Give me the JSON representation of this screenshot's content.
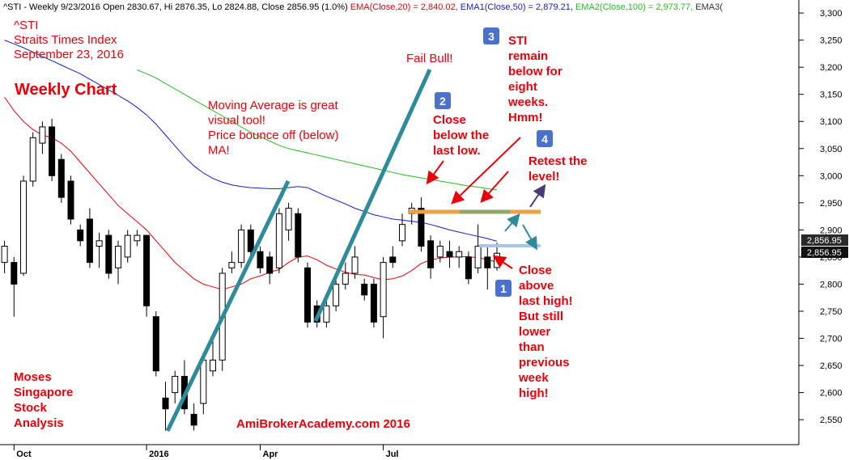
{
  "chart_data": {
    "type": "candlestick",
    "header": [
      {
        "text": "^STI - Weekly 9/23/2016 Open 2830.67, Hi 2876.35, Lo 2824.88, Close 2856.95 (1.0%) ",
        "color": "#000000"
      },
      {
        "text": "EMA(Close,20) = 2,840.02, ",
        "color": "#e8000b"
      },
      {
        "text": "EMA1(Close,50) = 2,879.21, ",
        "color": "#1a1acc"
      },
      {
        "text": "EMA2(Close,100) = 2,973.77, ",
        "color": "#22bb22"
      },
      {
        "text": "EMA3(",
        "color": "#333333"
      }
    ],
    "categories": [
      null,
      "Oct",
      null,
      null,
      null,
      null,
      null,
      null,
      null,
      null,
      null,
      null,
      null,
      null,
      null,
      "2016",
      null,
      null,
      null,
      null,
      null,
      null,
      null,
      null,
      null,
      null,
      null,
      "Apr",
      null,
      null,
      null,
      null,
      null,
      null,
      null,
      null,
      null,
      null,
      null,
      null,
      "Jul",
      null,
      null,
      null,
      null,
      null,
      null,
      null,
      null,
      null,
      null,
      null,
      null
    ],
    "open": [
      2840,
      2840,
      2820,
      2990,
      3060,
      3090,
      3030,
      2990,
      2900,
      2920,
      2870,
      2890,
      2830,
      2850,
      2880,
      2890,
      2740,
      2590,
      2600,
      2630,
      2560,
      2580,
      2640,
      2660,
      2830,
      2840,
      2900,
      2860,
      2850,
      2830,
      2900,
      2930,
      2830,
      2760,
      2730,
      2760,
      2800,
      2820,
      2800,
      2800,
      2740,
      2850,
      2880,
      2930,
      2940,
      2880,
      2850,
      2860,
      2850,
      2850,
      2830,
      2850,
      2830.67
    ],
    "high": [
      2880,
      2850,
      3000,
      3080,
      3100,
      3105,
      3040,
      3000,
      2910,
      2940,
      2895,
      2900,
      2880,
      2900,
      2900,
      2890,
      2750,
      2620,
      2640,
      2660,
      2580,
      2670,
      2700,
      2830,
      2860,
      2910,
      2910,
      2870,
      2860,
      2940,
      2950,
      2940,
      2840,
      2770,
      2770,
      2810,
      2840,
      2870,
      2810,
      2810,
      2850,
      2870,
      2930,
      2950,
      2960,
      2890,
      2880,
      2880,
      2870,
      2860,
      2910,
      2870,
      2876.35
    ],
    "low": [
      2820,
      2740,
      2815,
      2980,
      3040,
      2990,
      2950,
      2910,
      2870,
      2830,
      2830,
      2810,
      2800,
      2840,
      2870,
      2740,
      2630,
      2530,
      2580,
      2560,
      2530,
      2560,
      2630,
      2640,
      2820,
      2830,
      2850,
      2820,
      2800,
      2820,
      2880,
      2840,
      2720,
      2720,
      2720,
      2750,
      2790,
      2810,
      2770,
      2720,
      2700,
      2830,
      2870,
      2910,
      2860,
      2810,
      2840,
      2830,
      2830,
      2800,
      2820,
      2790,
      2824.88
    ],
    "close": [
      2870,
      2800,
      2990,
      3070,
      3090,
      3000,
      2960,
      2920,
      2880,
      2840,
      2880,
      2820,
      2870,
      2890,
      2890,
      2760,
      2640,
      2570,
      2630,
      2570,
      2540,
      2660,
      2660,
      2820,
      2840,
      2900,
      2860,
      2830,
      2820,
      2930,
      2940,
      2850,
      2730,
      2730,
      2760,
      2800,
      2820,
      2850,
      2780,
      2730,
      2840,
      2840,
      2910,
      2940,
      2870,
      2830,
      2870,
      2850,
      2860,
      2810,
      2870,
      2830,
      2856.95
    ],
    "lines": [
      {
        "color": "#e8000b",
        "values": [
          3145,
          3120,
          3100,
          3085,
          3075,
          3070,
          3060,
          3045,
          3025,
          3005,
          2985,
          2965,
          2945,
          2930,
          2915,
          2900,
          2880,
          2860,
          2840,
          2825,
          2810,
          2800,
          2795,
          2790,
          2795,
          2800,
          2810,
          2815,
          2822,
          2827,
          2840,
          2850,
          2852,
          2845,
          2835,
          2828,
          2822,
          2818,
          2817,
          2812,
          2808,
          2810,
          2815,
          2825,
          2838,
          2845,
          2848,
          2850,
          2850,
          2851,
          2848,
          2846,
          2840.02
        ]
      },
      {
        "color": "#1a1acc",
        "values": [
          3250,
          3243,
          3236,
          3228,
          3220,
          3212,
          3204,
          3196,
          3188,
          3178,
          3168,
          3158,
          3148,
          3138,
          3126,
          3112,
          3095,
          3075,
          3055,
          3035,
          3018,
          3005,
          2995,
          2988,
          2983,
          2980,
          2978,
          2977,
          2976,
          2976,
          2978,
          2980,
          2978,
          2970,
          2962,
          2955,
          2948,
          2940,
          2934,
          2928,
          2924,
          2920,
          2918,
          2916,
          2914,
          2910,
          2905,
          2900,
          2896,
          2892,
          2888,
          2884,
          2879.21
        ]
      },
      {
        "color": "#22bb22",
        "values": [
          null,
          null,
          null,
          null,
          null,
          null,
          null,
          null,
          null,
          null,
          null,
          null,
          null,
          null,
          3195,
          3188,
          3180,
          3170,
          3160,
          3150,
          3140,
          3130,
          3120,
          3110,
          3100,
          3090,
          3080,
          3072,
          3064,
          3056,
          3050,
          3046,
          3042,
          3038,
          3034,
          3030,
          3026,
          3022,
          3018,
          3014,
          3010,
          3006,
          3002,
          2999,
          2996,
          2993,
          2990,
          2987,
          2984,
          2981,
          2979,
          2976,
          2973.77
        ]
      }
    ],
    "ylim": [
      2504,
      3324
    ],
    "yticks": [
      {
        "value": 2550,
        "label": "2,550"
      },
      {
        "value": 2600,
        "label": "2,600"
      },
      {
        "value": 2650,
        "label": "2,650"
      },
      {
        "value": 2700,
        "label": "2,700"
      },
      {
        "value": 2750,
        "label": "2,750"
      },
      {
        "value": 2800,
        "label": "2,800"
      },
      {
        "value": 2850,
        "label": "2,850"
      },
      {
        "value": 2900,
        "label": "2,900"
      },
      {
        "value": 2950,
        "label": "2,950"
      },
      {
        "value": 3000,
        "label": "3,000"
      },
      {
        "value": 3050,
        "label": "3,050"
      },
      {
        "value": 3100,
        "label": "3,100"
      },
      {
        "value": 3150,
        "label": "3,150"
      },
      {
        "value": 3200,
        "label": "3,200"
      },
      {
        "value": 3250,
        "label": "3,250"
      },
      {
        "value": 3300,
        "label": "3,300"
      }
    ],
    "grid": false,
    "price_labels": [
      "2,856.95",
      "2,856.95"
    ],
    "annotations": {
      "index": [
        "^STI",
        "Straits Times Index",
        "September 23, 2016"
      ],
      "weekly": [
        "Weekly Chart"
      ],
      "ma": [
        "Moving Average is great",
        "visual tool!",
        "Price bounce off (below)",
        "MA!"
      ],
      "fail": [
        "Fail Bull!"
      ],
      "note2": [
        "Close",
        "below the",
        "last low."
      ],
      "note3": [
        "STI",
        "remain",
        "below for",
        "eight",
        "weeks.",
        "Hmm!"
      ],
      "note4": [
        "Retest the",
        "level!"
      ],
      "note1": [
        "Close",
        "above",
        "last high!",
        "But still",
        "lower",
        "than",
        "previous",
        "week",
        "high!"
      ],
      "author": [
        "Moses",
        "Singapore",
        "Stock",
        "Analysis"
      ],
      "site": [
        "AmiBrokerAcademy.com  2016"
      ]
    },
    "badges": [
      "1",
      "2",
      "3",
      "4"
    ]
  }
}
